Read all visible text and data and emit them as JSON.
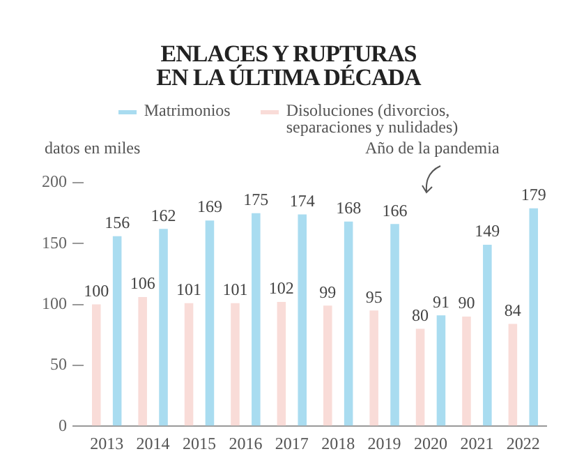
{
  "chart_data": {
    "type": "bar",
    "title": "ENLACES Y RUPTURAS\nEN LA ÚLTIMA DÉCADA",
    "ylabel": "datos en miles",
    "categories": [
      "2013",
      "2014",
      "2015",
      "2016",
      "2017",
      "2018",
      "2019",
      "2020",
      "2021",
      "2022"
    ],
    "series": [
      {
        "name": "Disoluciones (divorcios,\nseparaciones  y nulidades)",
        "color": "#f9dcd8",
        "values": [
          100,
          106,
          101,
          101,
          102,
          99,
          95,
          80,
          90,
          84
        ]
      },
      {
        "name": "Matrimonios",
        "color": "#a9dcf0",
        "values": [
          156,
          162,
          169,
          175,
          174,
          168,
          166,
          91,
          149,
          179
        ]
      }
    ],
    "ylim": [
      0,
      200
    ],
    "yticks": [
      0,
      50,
      100,
      150,
      200
    ],
    "grid": false,
    "legend": "top",
    "data_labels": true,
    "annotations": [
      "Año de la pandemia"
    ]
  }
}
